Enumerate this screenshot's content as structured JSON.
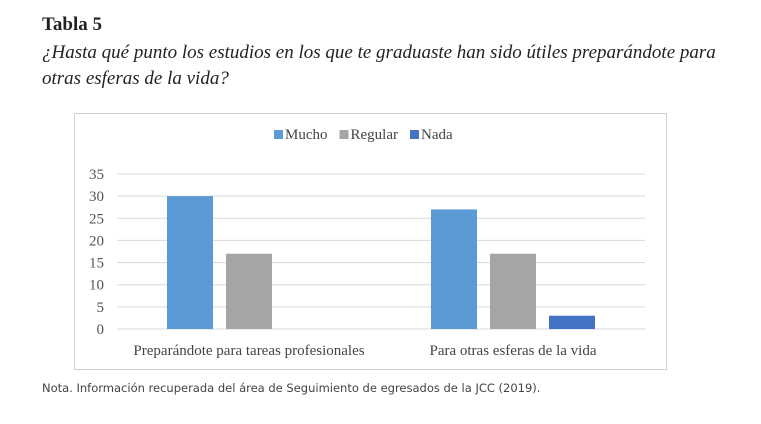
{
  "heading": "Tabla 5",
  "subtitle": "¿Hasta qué punto los estudios en los que te graduaste han sido útiles preparándote para otras esferas de la vida?",
  "note": "Nota. Información recuperada del área de Seguimiento de egresados de la JCC (2019).",
  "chart_data": {
    "type": "bar",
    "categories": [
      "Preparándote  para tareas profesionales",
      "Para otras esferas de la vida"
    ],
    "series": [
      {
        "name": "Mucho",
        "values": [
          30,
          27
        ],
        "color": "#5B9BD5"
      },
      {
        "name": "Regular",
        "values": [
          17,
          17
        ],
        "color": "#A5A5A5"
      },
      {
        "name": "Nada",
        "values": [
          0,
          3
        ],
        "color": "#4472C4"
      }
    ],
    "ylim": [
      0,
      35
    ],
    "yticks": [
      0,
      5,
      10,
      15,
      20,
      25,
      30,
      35
    ],
    "grid": true,
    "legend": "top"
  }
}
